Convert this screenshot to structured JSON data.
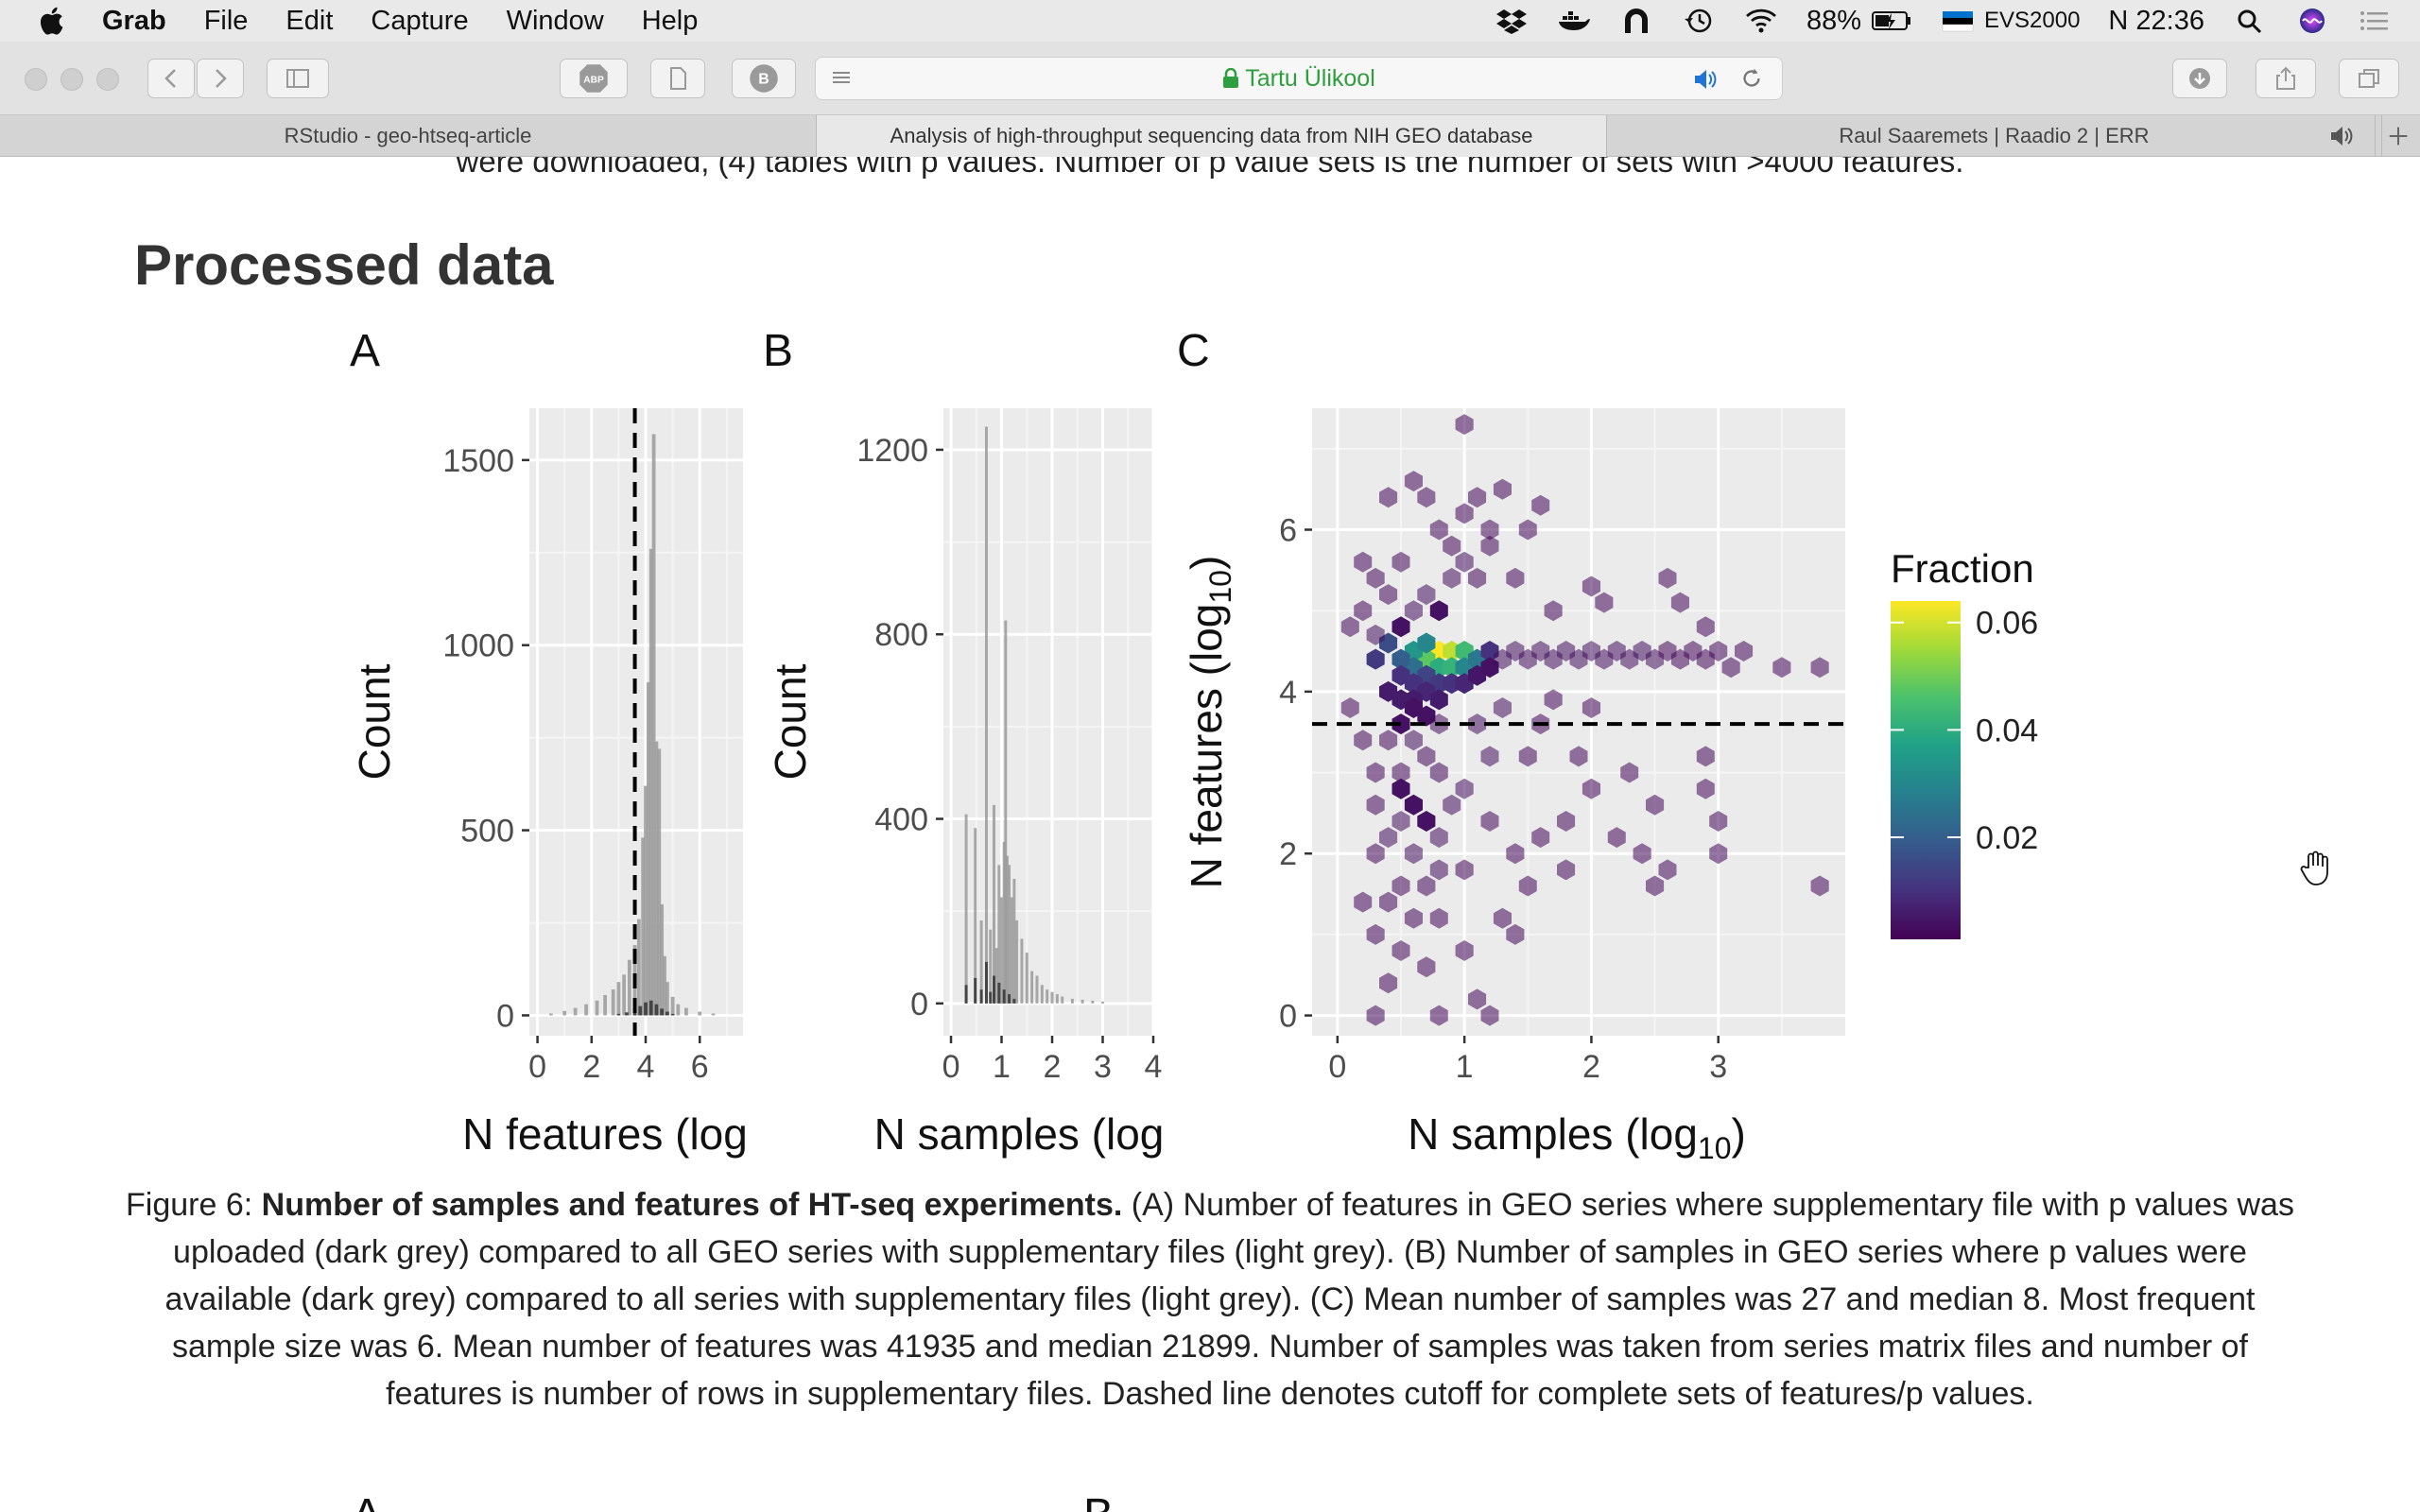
{
  "menubar": {
    "app_name": "Grab",
    "menus": [
      "File",
      "Edit",
      "Capture",
      "Window",
      "Help"
    ],
    "battery": "88%",
    "input_source": "EVS2000",
    "clock": "N 22:36"
  },
  "toolbar": {
    "address_text": "Tartu Ülikool",
    "abp_label": "ABP",
    "b_label": "B"
  },
  "tabs": [
    {
      "label": "RStudio - geo-htseq-article",
      "active": false
    },
    {
      "label": "Analysis of high-throughput sequencing data from NIH GEO database",
      "active": true
    },
    {
      "label": "Raul Saaremets | Raadio 2 | ERR",
      "active": false
    }
  ],
  "page": {
    "clipped_text": "were downloaded, (4) tables with p values. Number of p value sets is the number of sets with >4000 features.",
    "section_title": "Processed data",
    "caption": {
      "prefix": "Figure 6: ",
      "bold": "Number of samples and features of HT-seq experiments.",
      "body": " (A) Number of features in GEO series where supplementary file with p values was uploaded (dark grey) compared to all GEO series with supplementary files (light grey). (B) Number of samples in GEO series where p values were available (dark grey) compared to all series with supplementary files (light grey). (C) Mean number of samples was 27 and median 8. Most frequent sample size was 6. Mean number of features was 41935 and median 21899. Number of samples was taken from series matrix files and number of features is number of rows in supplementary files. Dashed line denotes cutoff for complete sets of features/p values."
    },
    "next_letters": [
      "A",
      "B"
    ]
  },
  "chart_data": [
    {
      "panel": "A",
      "type": "bar",
      "xlabel": "N features (log",
      "ylabel": "Count",
      "xlim": [
        -0.3,
        7.6
      ],
      "ylim": [
        -55,
        1640
      ],
      "xticks": [
        0,
        2,
        4,
        6
      ],
      "yticks": [
        0,
        500,
        1000,
        1500
      ],
      "cutoff_x": 3.6,
      "series": [
        {
          "name": "all",
          "color": "#9a9a9a",
          "x": [
            0.5,
            1.0,
            1.4,
            1.8,
            2.2,
            2.5,
            2.8,
            3.0,
            3.2,
            3.4,
            3.6,
            3.75,
            3.9,
            4.0,
            4.1,
            4.2,
            4.3,
            4.4,
            4.5,
            4.6,
            4.7,
            4.8,
            5.0,
            5.2,
            5.5,
            6.0,
            6.5
          ],
          "values": [
            5,
            12,
            20,
            30,
            40,
            55,
            70,
            90,
            110,
            150,
            190,
            260,
            480,
            620,
            900,
            1260,
            1570,
            740,
            720,
            300,
            160,
            90,
            50,
            30,
            20,
            10,
            5
          ]
        },
        {
          "name": "with p values",
          "color": "#3a3a3a",
          "x": [
            3.0,
            3.3,
            3.6,
            3.8,
            4.0,
            4.2,
            4.4,
            4.6,
            4.8,
            5.0
          ],
          "values": [
            4,
            8,
            15,
            25,
            35,
            40,
            30,
            18,
            10,
            4
          ]
        }
      ]
    },
    {
      "panel": "B",
      "type": "bar",
      "xlabel": "N samples (log",
      "ylabel": "Count",
      "xlim": [
        -0.15,
        4.0
      ],
      "ylim": [
        -70,
        1290
      ],
      "xticks": [
        0,
        1,
        2,
        3,
        4
      ],
      "yticks": [
        0,
        400,
        800,
        1200
      ],
      "series": [
        {
          "name": "all",
          "color": "#9a9a9a",
          "x": [
            0.3,
            0.48,
            0.6,
            0.7,
            0.78,
            0.85,
            0.9,
            0.95,
            1.0,
            1.05,
            1.08,
            1.11,
            1.15,
            1.2,
            1.25,
            1.3,
            1.4,
            1.5,
            1.6,
            1.7,
            1.8,
            1.9,
            2.0,
            2.1,
            2.2,
            2.4,
            2.6,
            2.8,
            3.0
          ],
          "values": [
            410,
            380,
            180,
            1250,
            160,
            430,
            120,
            300,
            230,
            350,
            830,
            320,
            300,
            230,
            270,
            180,
            140,
            110,
            70,
            60,
            40,
            30,
            25,
            20,
            15,
            10,
            8,
            6,
            4
          ]
        },
        {
          "name": "with p values",
          "color": "#3a3a3a",
          "x": [
            0.3,
            0.48,
            0.6,
            0.7,
            0.78,
            0.85,
            0.95,
            1.05,
            1.15,
            1.25
          ],
          "values": [
            40,
            55,
            30,
            90,
            25,
            60,
            45,
            30,
            20,
            10
          ]
        }
      ]
    },
    {
      "panel": "C",
      "type": "heatmap",
      "subtype": "hexbin",
      "xlabel": "N samples (log",
      "xlabel_sub": "10",
      "xlabel_close": ")",
      "ylabel": "N features (log",
      "ylabel_sub": "10",
      "ylabel_close": ")",
      "xlim": [
        -0.2,
        4.0
      ],
      "ylim": [
        -0.25,
        7.5
      ],
      "xticks": [
        0,
        1,
        2,
        3
      ],
      "yticks": [
        0,
        2,
        4,
        6
      ],
      "cutoff_y": 3.6,
      "legend": {
        "title": "Fraction",
        "ticks": [
          0.02,
          0.04,
          0.06
        ],
        "range": [
          0.001,
          0.064
        ],
        "position": "right"
      },
      "colors": [
        "#440154",
        "#46317e",
        "#365b8c",
        "#277f8e",
        "#1fa187",
        "#4ac16d",
        "#a0da39",
        "#fde725"
      ],
      "points": [
        [
          0.8,
          4.5,
          0.064
        ],
        [
          0.9,
          4.5,
          0.058
        ],
        [
          0.7,
          4.4,
          0.048
        ],
        [
          1.0,
          4.5,
          0.044
        ],
        [
          0.8,
          4.3,
          0.04
        ],
        [
          0.9,
          4.3,
          0.042
        ],
        [
          0.6,
          4.5,
          0.034
        ],
        [
          0.7,
          4.6,
          0.03
        ],
        [
          1.0,
          4.3,
          0.03
        ],
        [
          1.1,
          4.4,
          0.026
        ],
        [
          0.6,
          4.3,
          0.024
        ],
        [
          0.5,
          4.4,
          0.02
        ],
        [
          0.4,
          4.6,
          0.016
        ],
        [
          0.3,
          4.4,
          0.012
        ],
        [
          1.2,
          4.5,
          0.01
        ],
        [
          0.7,
          4.2,
          0.014
        ],
        [
          0.6,
          4.1,
          0.01
        ],
        [
          0.8,
          4.1,
          0.012
        ],
        [
          0.9,
          4.1,
          0.01
        ],
        [
          1.0,
          4.1,
          0.008
        ],
        [
          0.5,
          4.2,
          0.01
        ],
        [
          0.7,
          4.0,
          0.008
        ],
        [
          0.5,
          3.9,
          0.006
        ],
        [
          0.6,
          3.9,
          0.006
        ],
        [
          0.8,
          3.9,
          0.006
        ],
        [
          0.4,
          4.0,
          0.006
        ],
        [
          0.6,
          3.8,
          0.004
        ],
        [
          0.7,
          3.7,
          0.004
        ],
        [
          0.8,
          3.6,
          0.003
        ],
        [
          0.5,
          3.6,
          0.004
        ],
        [
          0.4,
          3.4,
          0.002
        ],
        [
          0.6,
          3.4,
          0.003
        ],
        [
          0.7,
          3.2,
          0.002
        ],
        [
          0.5,
          3.0,
          0.002
        ],
        [
          0.8,
          3.0,
          0.002
        ],
        [
          1.1,
          4.2,
          0.005
        ],
        [
          1.2,
          4.3,
          0.004
        ],
        [
          1.3,
          4.4,
          0.003
        ],
        [
          1.4,
          4.5,
          0.003
        ],
        [
          1.5,
          4.4,
          0.003
        ],
        [
          1.6,
          4.5,
          0.003
        ],
        [
          1.7,
          4.4,
          0.003
        ],
        [
          1.8,
          4.5,
          0.003
        ],
        [
          1.9,
          4.4,
          0.003
        ],
        [
          2.0,
          4.5,
          0.003
        ],
        [
          2.1,
          4.4,
          0.003
        ],
        [
          2.2,
          4.5,
          0.003
        ],
        [
          2.3,
          4.4,
          0.003
        ],
        [
          2.4,
          4.5,
          0.003
        ],
        [
          2.5,
          4.4,
          0.003
        ],
        [
          2.6,
          4.5,
          0.002
        ],
        [
          2.7,
          4.4,
          0.002
        ],
        [
          2.8,
          4.5,
          0.002
        ],
        [
          2.9,
          4.4,
          0.002
        ],
        [
          3.0,
          4.5,
          0.002
        ],
        [
          3.1,
          4.3,
          0.002
        ],
        [
          3.2,
          4.5,
          0.002
        ],
        [
          3.5,
          4.3,
          0.002
        ],
        [
          3.8,
          4.3,
          0.002
        ],
        [
          0.5,
          4.8,
          0.004
        ],
        [
          0.6,
          5.0,
          0.003
        ],
        [
          0.7,
          5.2,
          0.003
        ],
        [
          0.8,
          5.0,
          0.004
        ],
        [
          0.9,
          5.4,
          0.003
        ],
        [
          1.0,
          5.6,
          0.003
        ],
        [
          1.1,
          5.4,
          0.002
        ],
        [
          1.2,
          5.8,
          0.002
        ],
        [
          0.9,
          5.8,
          0.002
        ],
        [
          0.8,
          6.0,
          0.002
        ],
        [
          0.7,
          6.4,
          0.002
        ],
        [
          0.6,
          6.6,
          0.002
        ],
        [
          0.4,
          6.4,
          0.002
        ],
        [
          1.0,
          6.2,
          0.002
        ],
        [
          1.1,
          6.4,
          0.002
        ],
        [
          1.2,
          6.0,
          0.002
        ],
        [
          1.3,
          6.5,
          0.002
        ],
        [
          1.5,
          6.0,
          0.002
        ],
        [
          1.6,
          6.3,
          0.002
        ],
        [
          1.0,
          7.3,
          0.002
        ],
        [
          0.3,
          5.4,
          0.002
        ],
        [
          0.2,
          5.6,
          0.002
        ],
        [
          0.4,
          5.2,
          0.002
        ],
        [
          0.5,
          5.6,
          0.002
        ],
        [
          0.3,
          4.7,
          0.003
        ],
        [
          0.2,
          5.0,
          0.002
        ],
        [
          0.1,
          4.8,
          0.002
        ],
        [
          1.4,
          5.4,
          0.002
        ],
        [
          1.7,
          5.0,
          0.002
        ],
        [
          2.0,
          5.3,
          0.002
        ],
        [
          2.1,
          5.1,
          0.002
        ],
        [
          2.6,
          5.4,
          0.002
        ],
        [
          2.7,
          5.1,
          0.002
        ],
        [
          2.9,
          4.8,
          0.002
        ],
        [
          0.5,
          2.8,
          0.004
        ],
        [
          0.6,
          2.6,
          0.004
        ],
        [
          0.7,
          2.4,
          0.004
        ],
        [
          0.8,
          2.2,
          0.003
        ],
        [
          0.5,
          2.4,
          0.003
        ],
        [
          0.9,
          2.6,
          0.003
        ],
        [
          1.0,
          2.8,
          0.003
        ],
        [
          0.4,
          2.2,
          0.003
        ],
        [
          0.6,
          2.0,
          0.003
        ],
        [
          0.8,
          1.8,
          0.003
        ],
        [
          1.0,
          1.8,
          0.002
        ],
        [
          0.5,
          1.6,
          0.002
        ],
        [
          0.7,
          1.6,
          0.002
        ],
        [
          0.4,
          1.4,
          0.002
        ],
        [
          0.6,
          1.2,
          0.002
        ],
        [
          0.8,
          1.2,
          0.002
        ],
        [
          0.3,
          1.0,
          0.002
        ],
        [
          0.5,
          0.8,
          0.002
        ],
        [
          0.7,
          0.6,
          0.002
        ],
        [
          0.4,
          0.4,
          0.002
        ],
        [
          0.3,
          0.0,
          0.002
        ],
        [
          0.8,
          0.0,
          0.002
        ],
        [
          1.1,
          0.2,
          0.002
        ],
        [
          1.2,
          0.0,
          0.002
        ],
        [
          1.2,
          2.4,
          0.002
        ],
        [
          1.4,
          2.0,
          0.002
        ],
        [
          1.5,
          1.6,
          0.002
        ],
        [
          1.3,
          1.2,
          0.002
        ],
        [
          1.0,
          0.8,
          0.002
        ],
        [
          1.4,
          1.0,
          0.002
        ],
        [
          1.6,
          2.2,
          0.002
        ],
        [
          1.8,
          1.8,
          0.002
        ],
        [
          1.8,
          2.4,
          0.002
        ],
        [
          2.0,
          2.8,
          0.002
        ],
        [
          1.9,
          3.2,
          0.002
        ],
        [
          2.2,
          2.2,
          0.002
        ],
        [
          2.4,
          2.0,
          0.002
        ],
        [
          2.5,
          2.6,
          0.002
        ],
        [
          2.3,
          3.0,
          0.002
        ],
        [
          2.6,
          1.8,
          0.002
        ],
        [
          2.5,
          1.6,
          0.002
        ],
        [
          2.9,
          2.8,
          0.002
        ],
        [
          3.0,
          2.4,
          0.002
        ],
        [
          2.9,
          3.2,
          0.002
        ],
        [
          3.0,
          2.0,
          0.002
        ],
        [
          3.8,
          1.6,
          0.002
        ],
        [
          1.2,
          3.2,
          0.003
        ],
        [
          1.1,
          3.6,
          0.003
        ],
        [
          1.3,
          3.8,
          0.003
        ],
        [
          1.6,
          3.6,
          0.002
        ],
        [
          1.5,
          3.2,
          0.002
        ],
        [
          1.7,
          3.9,
          0.002
        ],
        [
          2.0,
          3.8,
          0.002
        ],
        [
          0.2,
          3.4,
          0.002
        ],
        [
          0.1,
          3.8,
          0.002
        ],
        [
          0.3,
          3.0,
          0.002
        ],
        [
          0.3,
          2.6,
          0.002
        ],
        [
          0.3,
          2.0,
          0.002
        ],
        [
          0.2,
          1.4,
          0.002
        ]
      ]
    }
  ]
}
